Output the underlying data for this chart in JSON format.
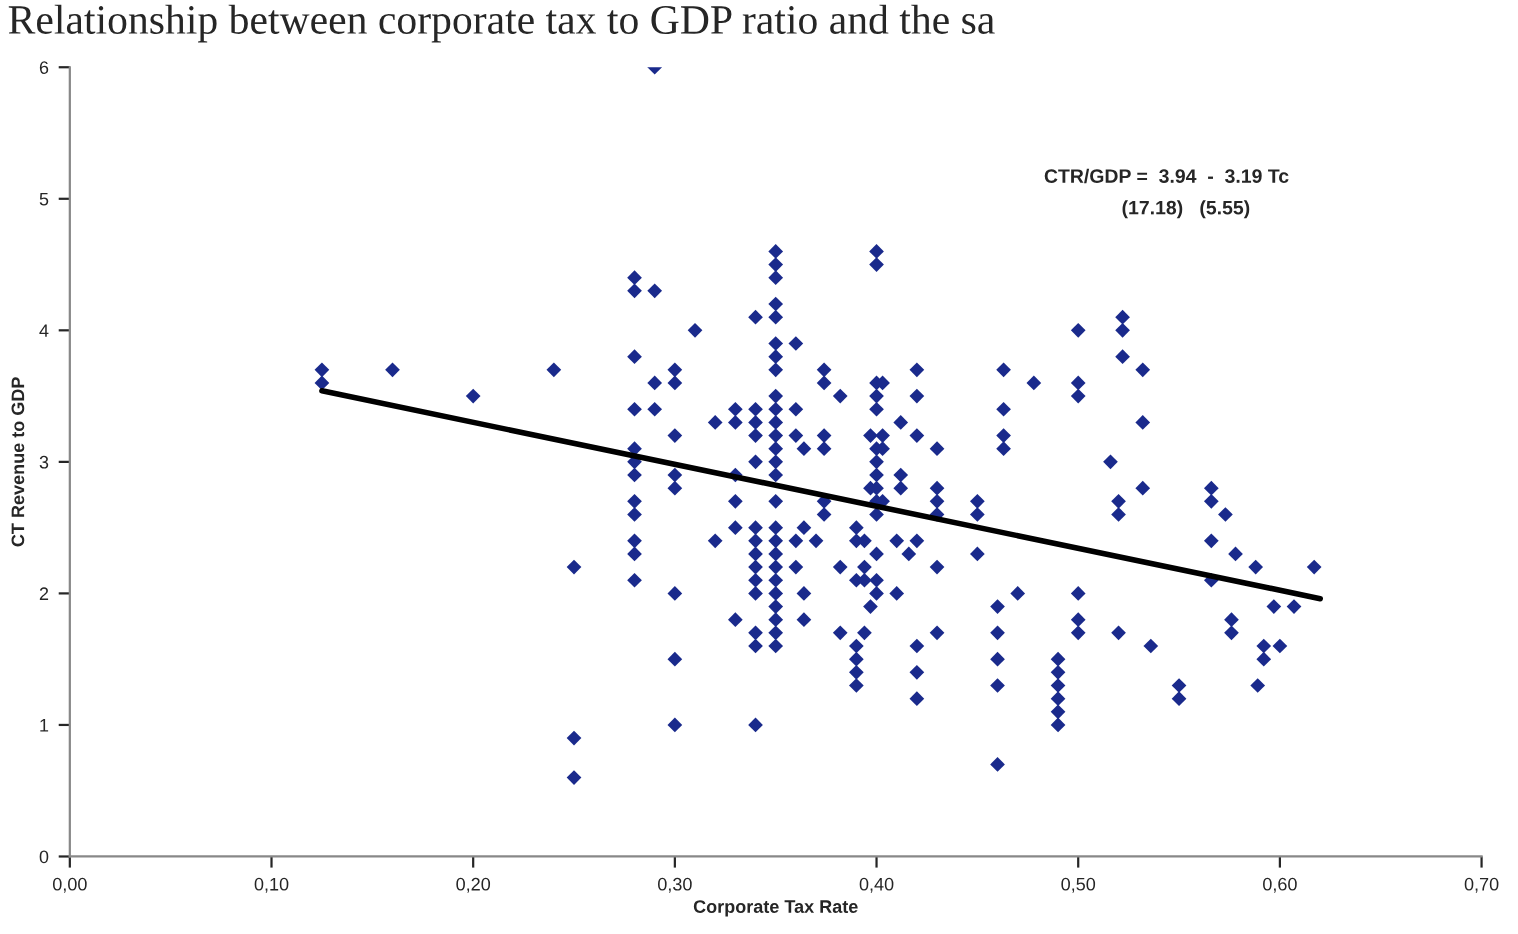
{
  "chart_data": {
    "type": "scatter",
    "title": "Relationship between corporate tax to GDP ratio and the sa",
    "xlabel": "Corporate Tax Rate",
    "ylabel": "CT Revenue to GDP",
    "annotations": [
      "CTR/GDP =  3.94  -  3.19 Tc",
      "(17.18)   (5.55)"
    ],
    "series": [
      {
        "color": "#1a2a8c",
        "marker": "diamond",
        "x": [
          0.125,
          0.125,
          0.16,
          0.2,
          0.24,
          0.25,
          0.25,
          0.25,
          0.28,
          0.28,
          0.28,
          0.28,
          0.28,
          0.28,
          0.28,
          0.28,
          0.28,
          0.28,
          0.28,
          0.28,
          0.29,
          0.29,
          0.29,
          0.29,
          0.3,
          0.3,
          0.3,
          0.3,
          0.3,
          0.3,
          0.3,
          0.3,
          0.31,
          0.32,
          0.32,
          0.33,
          0.33,
          0.33,
          0.33,
          0.33,
          0.33,
          0.34,
          0.34,
          0.34,
          0.34,
          0.34,
          0.34,
          0.34,
          0.34,
          0.34,
          0.34,
          0.34,
          0.34,
          0.34,
          0.34,
          0.35,
          0.35,
          0.35,
          0.35,
          0.35,
          0.35,
          0.35,
          0.35,
          0.35,
          0.35,
          0.35,
          0.35,
          0.35,
          0.35,
          0.35,
          0.35,
          0.35,
          0.35,
          0.35,
          0.35,
          0.35,
          0.35,
          0.35,
          0.35,
          0.35,
          0.35,
          0.36,
          0.36,
          0.36,
          0.36,
          0.36,
          0.364,
          0.364,
          0.364,
          0.364,
          0.37,
          0.374,
          0.374,
          0.374,
          0.374,
          0.374,
          0.374,
          0.382,
          0.382,
          0.382,
          0.39,
          0.39,
          0.39,
          0.39,
          0.39,
          0.39,
          0.39,
          0.394,
          0.394,
          0.394,
          0.394,
          0.397,
          0.397,
          0.397,
          0.4,
          0.4,
          0.4,
          0.4,
          0.4,
          0.4,
          0.4,
          0.4,
          0.4,
          0.4,
          0.4,
          0.4,
          0.4,
          0.4,
          0.403,
          0.403,
          0.403,
          0.403,
          0.41,
          0.41,
          0.412,
          0.412,
          0.412,
          0.416,
          0.42,
          0.42,
          0.42,
          0.42,
          0.42,
          0.42,
          0.42,
          0.43,
          0.43,
          0.43,
          0.43,
          0.43,
          0.43,
          0.45,
          0.45,
          0.45,
          0.46,
          0.46,
          0.46,
          0.46,
          0.46,
          0.463,
          0.463,
          0.463,
          0.463,
          0.47,
          0.478,
          0.49,
          0.49,
          0.49,
          0.49,
          0.49,
          0.49,
          0.5,
          0.5,
          0.5,
          0.5,
          0.5,
          0.5,
          0.516,
          0.52,
          0.52,
          0.52,
          0.522,
          0.522,
          0.522,
          0.532,
          0.532,
          0.532,
          0.536,
          0.55,
          0.55,
          0.566,
          0.566,
          0.566,
          0.566,
          0.573,
          0.576,
          0.576,
          0.578,
          0.588,
          0.589,
          0.592,
          0.592,
          0.597,
          0.6,
          0.607,
          0.617
        ],
        "values": [
          3.7,
          3.6,
          3.7,
          3.5,
          3.7,
          2.2,
          0.9,
          0.6,
          4.4,
          4.3,
          3.8,
          3.4,
          3.1,
          3.0,
          2.9,
          2.7,
          2.6,
          2.4,
          2.3,
          2.1,
          6.0,
          4.3,
          3.6,
          3.4,
          3.7,
          3.6,
          3.2,
          2.9,
          2.8,
          2.0,
          1.5,
          1.0,
          4.0,
          3.3,
          2.4,
          3.4,
          3.3,
          2.9,
          2.7,
          2.5,
          1.8,
          4.1,
          3.4,
          3.3,
          3.2,
          3.0,
          2.5,
          2.4,
          2.3,
          2.2,
          2.1,
          2.0,
          1.7,
          1.6,
          1.0,
          4.6,
          4.5,
          4.4,
          4.2,
          4.1,
          3.9,
          3.8,
          3.7,
          3.5,
          3.4,
          3.3,
          3.2,
          3.1,
          3.0,
          2.9,
          2.7,
          2.5,
          2.4,
          2.3,
          2.2,
          2.1,
          2.0,
          1.9,
          1.8,
          1.7,
          1.6,
          3.9,
          3.4,
          2.4,
          2.2,
          3.2,
          3.1,
          2.5,
          2.0,
          1.8,
          2.4,
          3.7,
          3.6,
          3.2,
          3.1,
          2.7,
          2.6,
          3.5,
          2.2,
          1.7,
          2.5,
          2.4,
          2.1,
          1.6,
          1.5,
          1.4,
          1.3,
          1.7,
          2.4,
          2.2,
          2.1,
          3.2,
          2.8,
          1.9,
          4.6,
          4.5,
          3.6,
          3.5,
          3.4,
          3.1,
          3.0,
          2.9,
          2.8,
          2.7,
          2.6,
          2.3,
          2.1,
          2.0,
          3.6,
          3.2,
          3.1,
          2.7,
          2.4,
          2.0,
          3.3,
          2.9,
          2.8,
          2.3,
          3.7,
          3.5,
          3.2,
          2.4,
          1.6,
          1.4,
          1.2,
          3.1,
          2.8,
          2.7,
          2.6,
          2.2,
          1.7,
          2.7,
          2.6,
          2.3,
          1.9,
          1.7,
          1.5,
          1.3,
          0.7,
          3.7,
          3.4,
          3.2,
          3.1,
          2.0,
          3.6,
          1.5,
          1.4,
          1.3,
          1.2,
          1.1,
          1.0,
          4.0,
          3.6,
          3.5,
          2.0,
          1.8,
          1.7,
          3.0,
          2.7,
          2.6,
          1.7,
          4.1,
          4.0,
          3.8,
          3.7,
          3.3,
          2.8,
          1.6,
          1.3,
          1.2,
          2.8,
          2.7,
          2.4,
          2.1,
          2.6,
          1.8,
          1.7,
          2.3,
          2.2,
          1.3,
          1.6,
          1.5,
          1.9,
          1.6,
          1.9,
          2.2
        ]
      },
      {
        "type": "line",
        "color": "#000000",
        "x": [
          0.125,
          0.62
        ],
        "values": [
          3.54,
          1.96
        ]
      }
    ],
    "xlim": [
      0,
      0.7
    ],
    "ylim": [
      0,
      6
    ],
    "xticks": [
      {
        "value": 0,
        "label": "0,00"
      },
      {
        "value": 0.1,
        "label": "0,10"
      },
      {
        "value": 0.2,
        "label": "0,20"
      },
      {
        "value": 0.3,
        "label": "0,30"
      },
      {
        "value": 0.4,
        "label": "0,40"
      },
      {
        "value": 0.5,
        "label": "0,50"
      },
      {
        "value": 0.6,
        "label": "0,60"
      },
      {
        "value": 0.7,
        "label": "0,70"
      }
    ],
    "yticks": [
      0,
      1,
      2,
      3,
      4,
      5,
      6
    ],
    "grid": false,
    "legend": false
  }
}
